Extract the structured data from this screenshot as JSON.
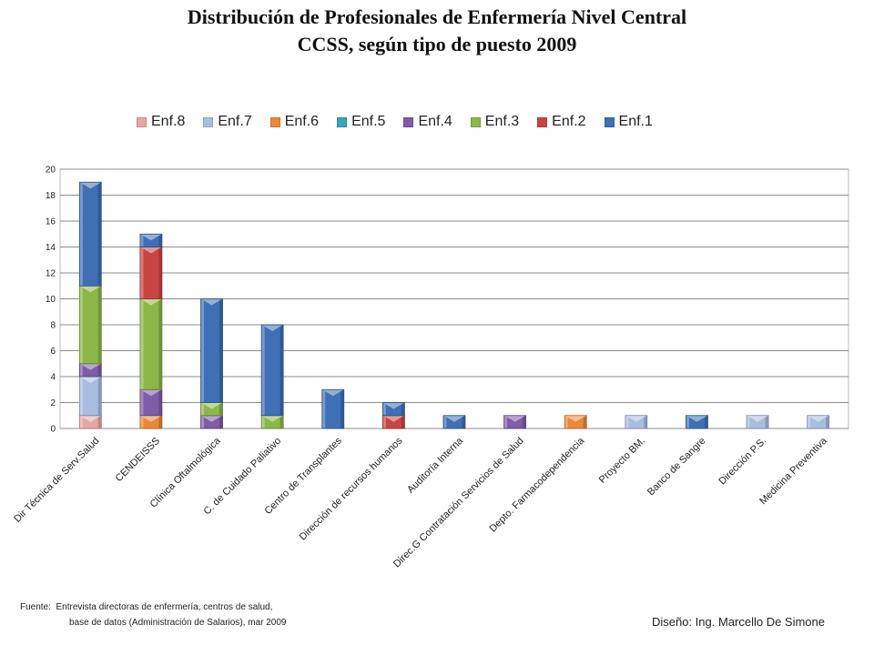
{
  "title_line1": "Distribución de  Profesionales de Enfermería Nivel Central",
  "title_line2": "CCSS, según tipo de puesto  2009",
  "footer": {
    "source_label": "Fuente:",
    "source_line1": "Entrevista directoras de enfermería, centros de salud,",
    "source_line2": "base de datos (Administración de Salarios),  mar 2009",
    "design": "Diseño: Ing. Marcello De Simone"
  },
  "chart_data": {
    "type": "bar",
    "stacked": true,
    "title": "Distribución de  Profesionales de Enfermería Nivel Central CCSS, según tipo de puesto  2009",
    "legend_position": "top",
    "grid": true,
    "ylim": [
      0,
      20
    ],
    "yticks": [
      "0",
      "2",
      "4",
      "6",
      "8",
      "10",
      "12",
      "14",
      "16",
      "18",
      "20"
    ],
    "categories": [
      "Dir Técnica de Serv.Salud",
      "CENDEISSS",
      "Clínica Oftalmológica",
      "C. de Cuidado Paliativo",
      "Centro de Transplantes",
      "Dirección de recursos humanos",
      "Auditoría Interna",
      "Direc.G Contratación Servicios de Salud",
      "Depto. Farmacodependencia",
      "Proyecto BM.",
      "Banco de Sangre",
      "Dirección P.S.",
      "Medicina Preventiva"
    ],
    "legend_order": [
      "Enf.8",
      "Enf.7",
      "Enf.6",
      "Enf.5",
      "Enf.4",
      "Enf.3",
      "Enf.2",
      "Enf.1"
    ],
    "series": [
      {
        "name": "Enf.8",
        "color": "#e6a7a5",
        "values": [
          1,
          0,
          0,
          0,
          0,
          0,
          0,
          0,
          0,
          0,
          0,
          0,
          0
        ]
      },
      {
        "name": "Enf.7",
        "color": "#a8bde0",
        "values": [
          3,
          0,
          0,
          0,
          0,
          0,
          0,
          0,
          0,
          1,
          0,
          1,
          1
        ]
      },
      {
        "name": "Enf.6",
        "color": "#e9893a",
        "values": [
          0,
          1,
          0,
          0,
          0,
          0,
          0,
          0,
          1,
          0,
          0,
          0,
          0
        ]
      },
      {
        "name": "Enf.5",
        "color": "#3aa4b9",
        "values": [
          0,
          0,
          0,
          0,
          0,
          0,
          0,
          0,
          0,
          0,
          0,
          0,
          0
        ]
      },
      {
        "name": "Enf.4",
        "color": "#7e5ca8",
        "values": [
          1,
          2,
          1,
          0,
          0,
          0,
          0,
          1,
          0,
          0,
          0,
          0,
          0
        ]
      },
      {
        "name": "Enf.3",
        "color": "#8db748",
        "values": [
          6,
          7,
          1,
          1,
          0,
          0,
          0,
          0,
          0,
          0,
          0,
          0,
          0
        ]
      },
      {
        "name": "Enf.2",
        "color": "#c84543",
        "values": [
          0,
          4,
          0,
          0,
          0,
          1,
          0,
          0,
          0,
          0,
          0,
          0,
          0
        ]
      },
      {
        "name": "Enf.1",
        "color": "#3f6fb5",
        "values": [
          8,
          1,
          8,
          7,
          3,
          1,
          1,
          0,
          0,
          0,
          1,
          0,
          0
        ]
      }
    ]
  }
}
